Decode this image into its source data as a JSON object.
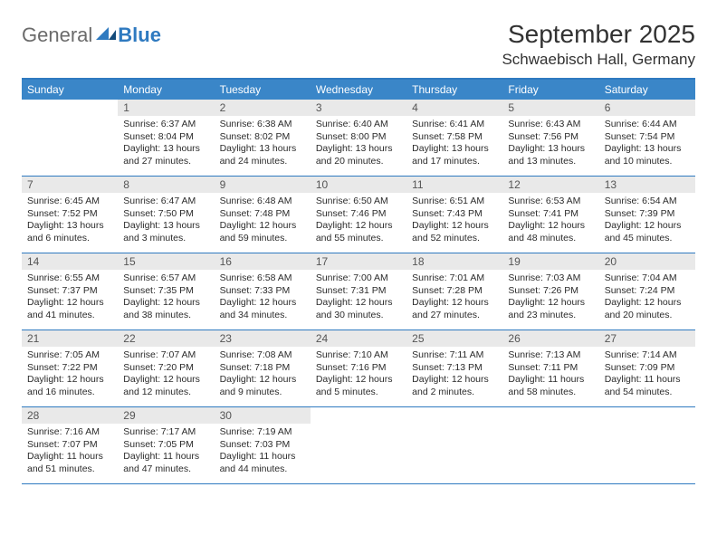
{
  "logo": {
    "general": "General",
    "blue": "Blue"
  },
  "title": "September 2025",
  "location": "Schwaebisch Hall, Germany",
  "colors": {
    "header_bar": "#3a86c8",
    "accent_line": "#2f7ac0",
    "daynum_bg": "#e9e9e9",
    "text": "#2b2b2b",
    "logo_gray": "#6b6b6b",
    "logo_blue": "#2f7ac0"
  },
  "day_names": [
    "Sunday",
    "Monday",
    "Tuesday",
    "Wednesday",
    "Thursday",
    "Friday",
    "Saturday"
  ],
  "weeks": [
    [
      {
        "n": "",
        "sr": "",
        "ss": "",
        "dl": ""
      },
      {
        "n": "1",
        "sr": "Sunrise: 6:37 AM",
        "ss": "Sunset: 8:04 PM",
        "dl": "Daylight: 13 hours and 27 minutes."
      },
      {
        "n": "2",
        "sr": "Sunrise: 6:38 AM",
        "ss": "Sunset: 8:02 PM",
        "dl": "Daylight: 13 hours and 24 minutes."
      },
      {
        "n": "3",
        "sr": "Sunrise: 6:40 AM",
        "ss": "Sunset: 8:00 PM",
        "dl": "Daylight: 13 hours and 20 minutes."
      },
      {
        "n": "4",
        "sr": "Sunrise: 6:41 AM",
        "ss": "Sunset: 7:58 PM",
        "dl": "Daylight: 13 hours and 17 minutes."
      },
      {
        "n": "5",
        "sr": "Sunrise: 6:43 AM",
        "ss": "Sunset: 7:56 PM",
        "dl": "Daylight: 13 hours and 13 minutes."
      },
      {
        "n": "6",
        "sr": "Sunrise: 6:44 AM",
        "ss": "Sunset: 7:54 PM",
        "dl": "Daylight: 13 hours and 10 minutes."
      }
    ],
    [
      {
        "n": "7",
        "sr": "Sunrise: 6:45 AM",
        "ss": "Sunset: 7:52 PM",
        "dl": "Daylight: 13 hours and 6 minutes."
      },
      {
        "n": "8",
        "sr": "Sunrise: 6:47 AM",
        "ss": "Sunset: 7:50 PM",
        "dl": "Daylight: 13 hours and 3 minutes."
      },
      {
        "n": "9",
        "sr": "Sunrise: 6:48 AM",
        "ss": "Sunset: 7:48 PM",
        "dl": "Daylight: 12 hours and 59 minutes."
      },
      {
        "n": "10",
        "sr": "Sunrise: 6:50 AM",
        "ss": "Sunset: 7:46 PM",
        "dl": "Daylight: 12 hours and 55 minutes."
      },
      {
        "n": "11",
        "sr": "Sunrise: 6:51 AM",
        "ss": "Sunset: 7:43 PM",
        "dl": "Daylight: 12 hours and 52 minutes."
      },
      {
        "n": "12",
        "sr": "Sunrise: 6:53 AM",
        "ss": "Sunset: 7:41 PM",
        "dl": "Daylight: 12 hours and 48 minutes."
      },
      {
        "n": "13",
        "sr": "Sunrise: 6:54 AM",
        "ss": "Sunset: 7:39 PM",
        "dl": "Daylight: 12 hours and 45 minutes."
      }
    ],
    [
      {
        "n": "14",
        "sr": "Sunrise: 6:55 AM",
        "ss": "Sunset: 7:37 PM",
        "dl": "Daylight: 12 hours and 41 minutes."
      },
      {
        "n": "15",
        "sr": "Sunrise: 6:57 AM",
        "ss": "Sunset: 7:35 PM",
        "dl": "Daylight: 12 hours and 38 minutes."
      },
      {
        "n": "16",
        "sr": "Sunrise: 6:58 AM",
        "ss": "Sunset: 7:33 PM",
        "dl": "Daylight: 12 hours and 34 minutes."
      },
      {
        "n": "17",
        "sr": "Sunrise: 7:00 AM",
        "ss": "Sunset: 7:31 PM",
        "dl": "Daylight: 12 hours and 30 minutes."
      },
      {
        "n": "18",
        "sr": "Sunrise: 7:01 AM",
        "ss": "Sunset: 7:28 PM",
        "dl": "Daylight: 12 hours and 27 minutes."
      },
      {
        "n": "19",
        "sr": "Sunrise: 7:03 AM",
        "ss": "Sunset: 7:26 PM",
        "dl": "Daylight: 12 hours and 23 minutes."
      },
      {
        "n": "20",
        "sr": "Sunrise: 7:04 AM",
        "ss": "Sunset: 7:24 PM",
        "dl": "Daylight: 12 hours and 20 minutes."
      }
    ],
    [
      {
        "n": "21",
        "sr": "Sunrise: 7:05 AM",
        "ss": "Sunset: 7:22 PM",
        "dl": "Daylight: 12 hours and 16 minutes."
      },
      {
        "n": "22",
        "sr": "Sunrise: 7:07 AM",
        "ss": "Sunset: 7:20 PM",
        "dl": "Daylight: 12 hours and 12 minutes."
      },
      {
        "n": "23",
        "sr": "Sunrise: 7:08 AM",
        "ss": "Sunset: 7:18 PM",
        "dl": "Daylight: 12 hours and 9 minutes."
      },
      {
        "n": "24",
        "sr": "Sunrise: 7:10 AM",
        "ss": "Sunset: 7:16 PM",
        "dl": "Daylight: 12 hours and 5 minutes."
      },
      {
        "n": "25",
        "sr": "Sunrise: 7:11 AM",
        "ss": "Sunset: 7:13 PM",
        "dl": "Daylight: 12 hours and 2 minutes."
      },
      {
        "n": "26",
        "sr": "Sunrise: 7:13 AM",
        "ss": "Sunset: 7:11 PM",
        "dl": "Daylight: 11 hours and 58 minutes."
      },
      {
        "n": "27",
        "sr": "Sunrise: 7:14 AM",
        "ss": "Sunset: 7:09 PM",
        "dl": "Daylight: 11 hours and 54 minutes."
      }
    ],
    [
      {
        "n": "28",
        "sr": "Sunrise: 7:16 AM",
        "ss": "Sunset: 7:07 PM",
        "dl": "Daylight: 11 hours and 51 minutes."
      },
      {
        "n": "29",
        "sr": "Sunrise: 7:17 AM",
        "ss": "Sunset: 7:05 PM",
        "dl": "Daylight: 11 hours and 47 minutes."
      },
      {
        "n": "30",
        "sr": "Sunrise: 7:19 AM",
        "ss": "Sunset: 7:03 PM",
        "dl": "Daylight: 11 hours and 44 minutes."
      },
      {
        "n": "",
        "sr": "",
        "ss": "",
        "dl": ""
      },
      {
        "n": "",
        "sr": "",
        "ss": "",
        "dl": ""
      },
      {
        "n": "",
        "sr": "",
        "ss": "",
        "dl": ""
      },
      {
        "n": "",
        "sr": "",
        "ss": "",
        "dl": ""
      }
    ]
  ]
}
